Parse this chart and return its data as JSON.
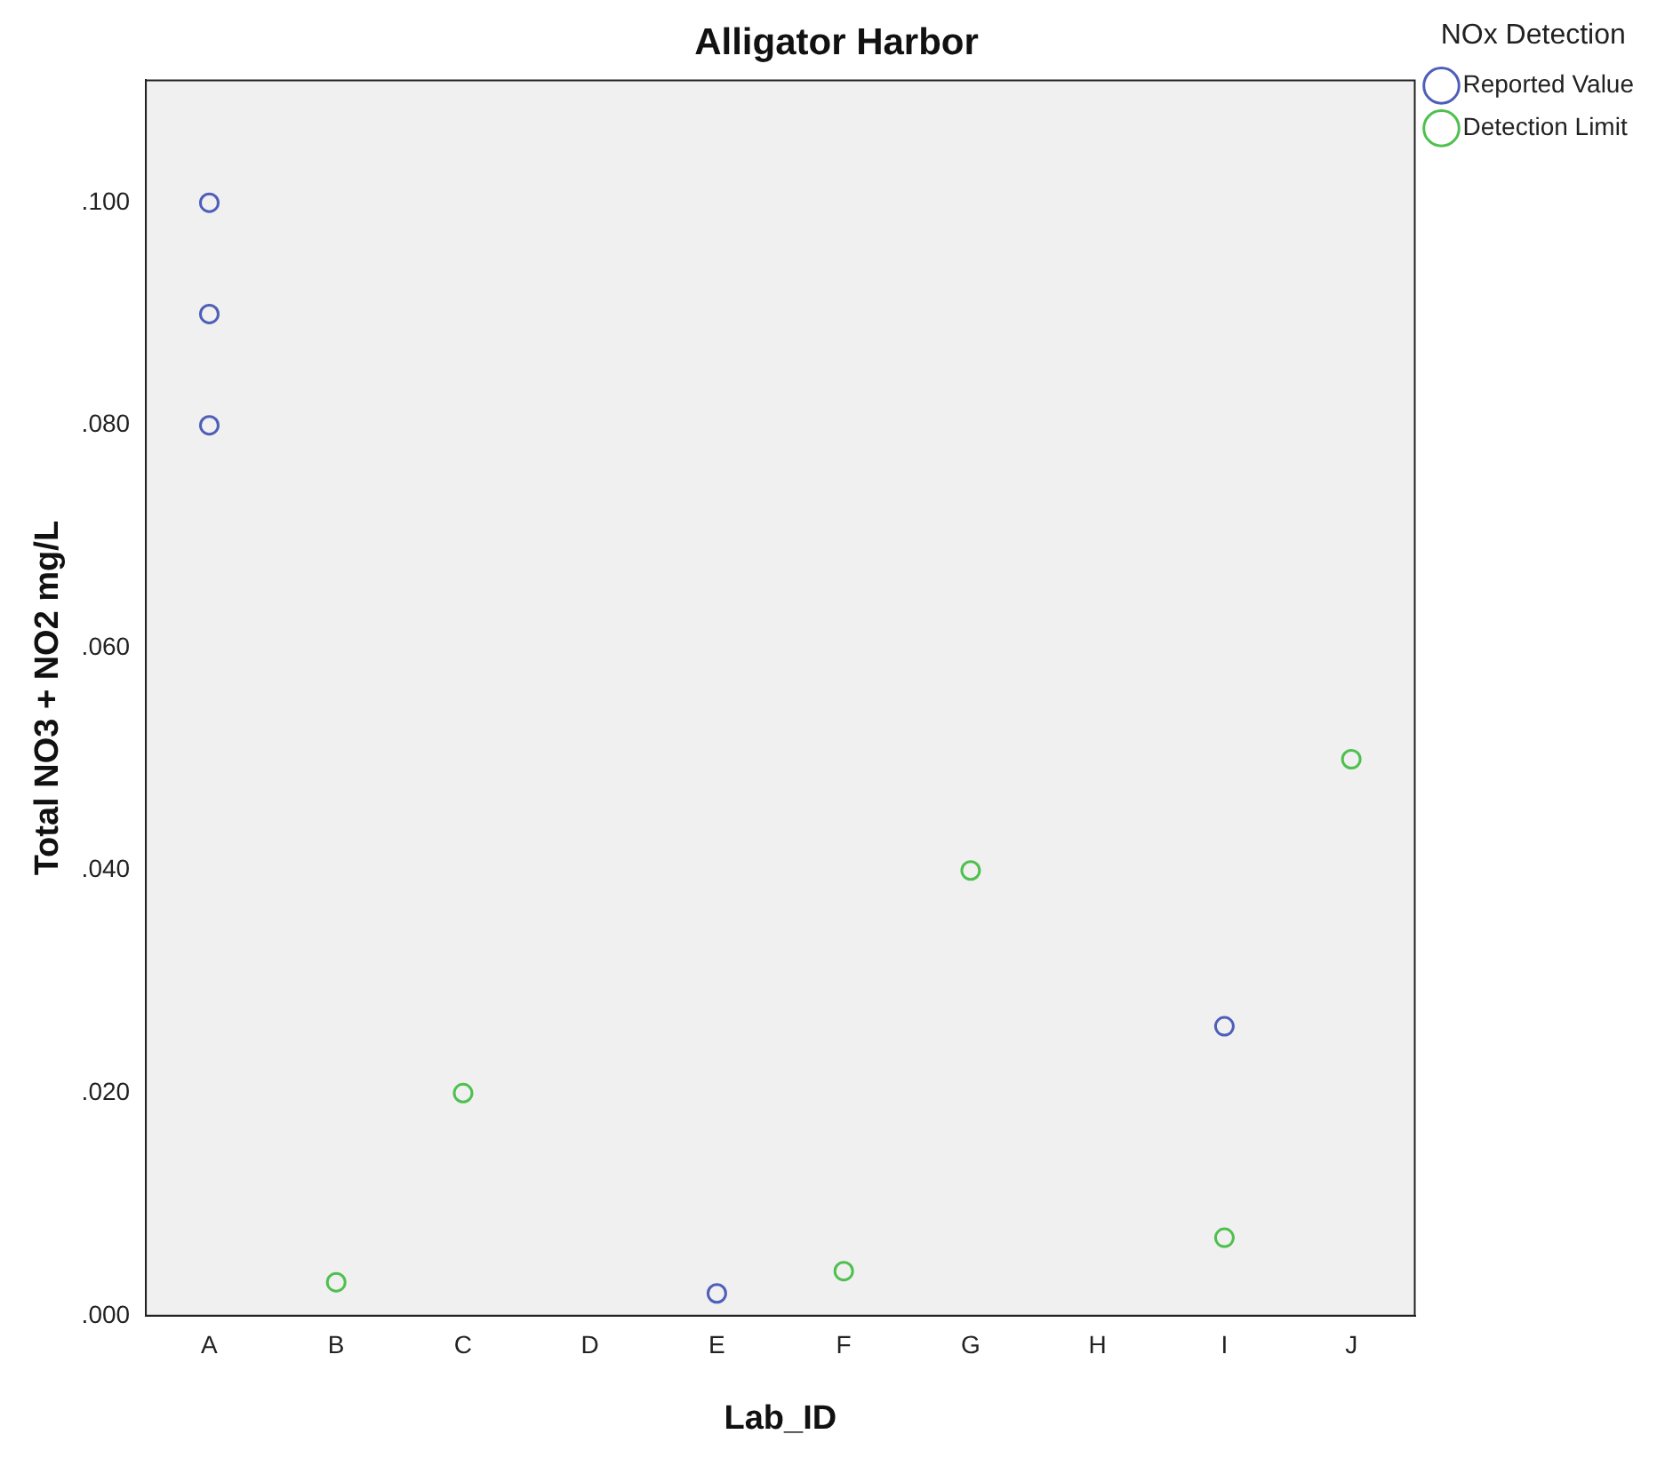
{
  "chart_data": {
    "type": "scatter",
    "title": "Alligator Harbor",
    "xlabel": "Lab_ID",
    "ylabel": "Total NO3 + NO2 mg/L",
    "legend_title": "NOx Detection",
    "categories": [
      "A",
      "B",
      "C",
      "D",
      "E",
      "F",
      "G",
      "H",
      "I",
      "J"
    ],
    "series": [
      {
        "name": "Reported Value",
        "color": "#4f5fb8",
        "x": [
          "A",
          "A",
          "A",
          "E",
          "I"
        ],
        "values": [
          0.1,
          0.09,
          0.08,
          0.002,
          0.026
        ]
      },
      {
        "name": "Detection Limit",
        "color": "#4fc04f",
        "x": [
          "B",
          "C",
          "F",
          "G",
          "I",
          "J"
        ],
        "values": [
          0.003,
          0.02,
          0.004,
          0.04,
          0.007,
          0.05
        ]
      }
    ],
    "ylim": [
      0,
      0.111
    ],
    "yticks": [
      {
        "value": 0,
        "label": ".000"
      },
      {
        "value": 0.02,
        "label": ".020"
      },
      {
        "value": 0.04,
        "label": ".040"
      },
      {
        "value": 0.06,
        "label": ".060"
      },
      {
        "value": 0.08,
        "label": ".080"
      },
      {
        "value": 0.1,
        "label": ".100"
      }
    ],
    "grid": false,
    "legend": "top right",
    "marker": "circle"
  }
}
